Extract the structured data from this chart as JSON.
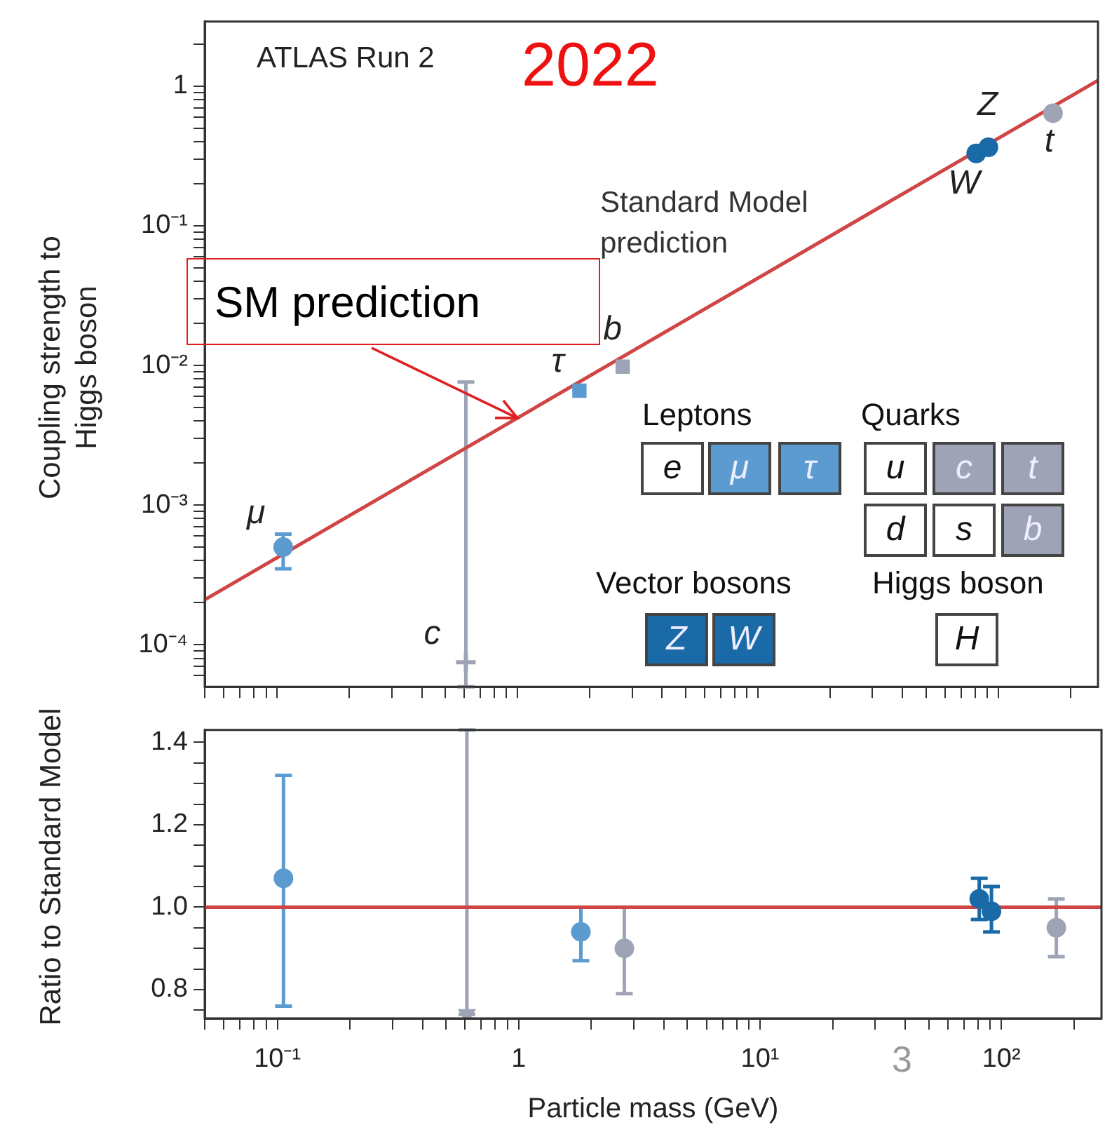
{
  "chart_data": [
    {
      "type": "scatter",
      "log": "xy",
      "ylabel": "Coupling strength to Higgs boson",
      "tick_labels": "y",
      "xlim": [
        0.05,
        260
      ],
      "xticks": [
        {
          "value": 0.05,
          "label": null
        },
        {
          "value": 0.06,
          "label": null
        },
        {
          "value": 0.07,
          "label": null
        },
        {
          "value": 0.08,
          "label": null
        },
        {
          "value": 0.09,
          "label": null
        },
        {
          "value": 0.1,
          "label": null
        },
        {
          "value": 0.2,
          "label": null
        },
        {
          "value": 0.3,
          "label": null
        },
        {
          "value": 0.4,
          "label": null
        },
        {
          "value": 0.5,
          "label": null
        },
        {
          "value": 0.6,
          "label": null
        },
        {
          "value": 0.7,
          "label": null
        },
        {
          "value": 0.8,
          "label": null
        },
        {
          "value": 0.9,
          "label": null
        },
        {
          "value": 1,
          "label": null
        },
        {
          "value": 2,
          "label": null
        },
        {
          "value": 3,
          "label": null
        },
        {
          "value": 4,
          "label": null
        },
        {
          "value": 5,
          "label": null
        },
        {
          "value": 6,
          "label": null
        },
        {
          "value": 7,
          "label": null
        },
        {
          "value": 8,
          "label": null
        },
        {
          "value": 9,
          "label": null
        },
        {
          "value": 10,
          "label": null
        },
        {
          "value": 20,
          "label": null
        },
        {
          "value": 30,
          "label": null
        },
        {
          "value": 40,
          "label": null
        },
        {
          "value": 50,
          "label": null
        },
        {
          "value": 60,
          "label": null
        },
        {
          "value": 70,
          "label": null
        },
        {
          "value": 80,
          "label": null
        },
        {
          "value": 90,
          "label": null
        },
        {
          "value": 100,
          "label": null
        },
        {
          "value": 200,
          "label": null
        }
      ],
      "ylim": [
        5e-05,
        2.9
      ],
      "yticks": [
        {
          "value": 6e-05,
          "label": null
        },
        {
          "value": 7e-05,
          "label": null
        },
        {
          "value": 8e-05,
          "label": null
        },
        {
          "value": 9e-05,
          "label": null
        },
        {
          "value": 0.0001,
          "label": "10⁻⁴"
        },
        {
          "value": 0.0002,
          "label": null
        },
        {
          "value": 0.0003,
          "label": null
        },
        {
          "value": 0.0004,
          "label": null
        },
        {
          "value": 0.0005,
          "label": null
        },
        {
          "value": 0.0006,
          "label": null
        },
        {
          "value": 0.0007,
          "label": null
        },
        {
          "value": 0.0008,
          "label": null
        },
        {
          "value": 0.0009,
          "label": null
        },
        {
          "value": 0.001,
          "label": "10⁻³"
        },
        {
          "value": 0.002,
          "label": null
        },
        {
          "value": 0.003,
          "label": null
        },
        {
          "value": 0.004,
          "label": null
        },
        {
          "value": 0.005,
          "label": null
        },
        {
          "value": 0.006,
          "label": null
        },
        {
          "value": 0.007,
          "label": null
        },
        {
          "value": 0.008,
          "label": null
        },
        {
          "value": 0.009,
          "label": null
        },
        {
          "value": 0.01,
          "label": "10⁻²"
        },
        {
          "value": 0.02,
          "label": null
        },
        {
          "value": 0.03,
          "label": null
        },
        {
          "value": 0.04,
          "label": null
        },
        {
          "value": 0.05,
          "label": null
        },
        {
          "value": 0.06,
          "label": null
        },
        {
          "value": 0.07,
          "label": null
        },
        {
          "value": 0.08,
          "label": null
        },
        {
          "value": 0.09,
          "label": null
        },
        {
          "value": 0.1,
          "label": "10⁻¹"
        },
        {
          "value": 0.2,
          "label": null
        },
        {
          "value": 0.3,
          "label": null
        },
        {
          "value": 0.4,
          "label": null
        },
        {
          "value": 0.5,
          "label": null
        },
        {
          "value": 0.6,
          "label": null
        },
        {
          "value": 0.7,
          "label": null
        },
        {
          "value": 0.8,
          "label": null
        },
        {
          "value": 0.9,
          "label": null
        },
        {
          "value": 1,
          "label": "1"
        },
        {
          "value": 2,
          "label": null
        }
      ],
      "series": [
        {
          "name": "Standard Model prediction",
          "type": "line",
          "color": "#d04545",
          "x": [
            0.05,
            260
          ],
          "values": [
            0.00021,
            1.1
          ]
        },
        {
          "name": "μ",
          "color": "#5b9bd0",
          "marker": "circle",
          "x": [
            0.106
          ],
          "values": [
            0.0005
          ],
          "errors": [
            [
              0.00035,
              0.00062
            ]
          ]
        },
        {
          "name": "c",
          "color": "#9ea4b5",
          "marker": "cross",
          "x": [
            0.61
          ],
          "values": [
            7.5e-05
          ],
          "errors": [
            [
              5e-05,
              0.0076
            ]
          ]
        },
        {
          "name": "τ",
          "color": "#5b9bd0",
          "marker": "square",
          "x": [
            1.81
          ],
          "values": [
            0.0066
          ]
        },
        {
          "name": "b",
          "color": "#9ea4b5",
          "marker": "square",
          "x": [
            2.74
          ],
          "values": [
            0.0098
          ]
        },
        {
          "name": "Z",
          "color": "#1a6aa8",
          "marker": "circle",
          "x": [
            91
          ],
          "values": [
            0.365
          ]
        },
        {
          "name": "W",
          "color": "#1a6aa8",
          "marker": "circle",
          "x": [
            81
          ],
          "values": [
            0.33
          ]
        },
        {
          "name": "t",
          "color": "#9ea4b5",
          "marker": "circle",
          "x": [
            169
          ],
          "values": [
            0.64
          ]
        }
      ],
      "annotations": [
        "ATLAS Run 2",
        "2022",
        {
          "text": "SM prediction",
          "x": 1.0,
          "y": 0.0042
        },
        "Leptons",
        "e",
        "μ",
        "τ",
        "Quarks",
        "u",
        "c",
        "t",
        "d",
        "s",
        "b",
        "Vector bosons",
        "Z",
        "W",
        "Higgs boson",
        "H"
      ]
    },
    {
      "type": "scatter",
      "log": "x",
      "xlabel": "Particle mass (GeV)",
      "ylabel": "Ratio to Standard Model",
      "xlim": [
        0.05,
        260
      ],
      "xticks": [
        {
          "value": 0.05,
          "label": null
        },
        {
          "value": 0.06,
          "label": null
        },
        {
          "value": 0.07,
          "label": null
        },
        {
          "value": 0.08,
          "label": null
        },
        {
          "value": 0.09,
          "label": null
        },
        {
          "value": 0.1,
          "label": "10⁻¹"
        },
        {
          "value": 0.2,
          "label": null
        },
        {
          "value": 0.3,
          "label": null
        },
        {
          "value": 0.4,
          "label": null
        },
        {
          "value": 0.5,
          "label": null
        },
        {
          "value": 0.6,
          "label": null
        },
        {
          "value": 0.7,
          "label": null
        },
        {
          "value": 0.8,
          "label": null
        },
        {
          "value": 0.9,
          "label": null
        },
        {
          "value": 1,
          "label": "1"
        },
        {
          "value": 2,
          "label": null
        },
        {
          "value": 3,
          "label": null
        },
        {
          "value": 4,
          "label": null
        },
        {
          "value": 5,
          "label": null
        },
        {
          "value": 6,
          "label": null
        },
        {
          "value": 7,
          "label": null
        },
        {
          "value": 8,
          "label": null
        },
        {
          "value": 9,
          "label": null
        },
        {
          "value": 10,
          "label": "10¹"
        },
        {
          "value": 20,
          "label": null
        },
        {
          "value": 30,
          "label": null
        },
        {
          "value": 40,
          "label": null
        },
        {
          "value": 50,
          "label": null
        },
        {
          "value": 60,
          "label": null
        },
        {
          "value": 70,
          "label": null
        },
        {
          "value": 80,
          "label": null
        },
        {
          "value": 90,
          "label": null
        },
        {
          "value": 100,
          "label": "10²"
        },
        {
          "value": 200,
          "label": null
        }
      ],
      "ylim": [
        0.73,
        1.43
      ],
      "yticks": [
        {
          "value": 0.75,
          "label": null
        },
        0.8,
        {
          "value": 0.85,
          "label": null
        },
        {
          "value": 0.9,
          "label": null
        },
        {
          "value": 0.95,
          "label": null
        },
        {
          "value": 1,
          "label": "1.0"
        },
        {
          "value": 1.05,
          "label": null
        },
        {
          "value": 1.1,
          "label": null
        },
        {
          "value": 1.15,
          "label": null
        },
        1.2,
        {
          "value": 1.25,
          "label": null
        },
        {
          "value": 1.3,
          "label": null
        },
        {
          "value": 1.35,
          "label": null
        },
        1.4
      ],
      "ref_lines": [
        {
          "axis": "y",
          "value": 1,
          "color": "#d04545"
        }
      ],
      "series": [
        {
          "color": "#5b9bd0",
          "marker": "circle",
          "x": [
            0.106
          ],
          "values": [
            1.07
          ],
          "errors": [
            [
              0.76,
              1.32
            ]
          ]
        },
        {
          "color": "#9ea4b5",
          "marker": "triangle",
          "x": [
            0.61
          ],
          "values": [
            0.74
          ],
          "errors": [
            [
              0.74,
              1.43
            ]
          ]
        },
        {
          "color": "#5b9bd0",
          "marker": "circle",
          "x": [
            1.81
          ],
          "values": [
            0.94
          ],
          "errors": [
            [
              0.87,
              1.0
            ]
          ]
        },
        {
          "color": "#9ea4b5",
          "marker": "circle",
          "x": [
            2.74
          ],
          "values": [
            0.9
          ],
          "errors": [
            [
              0.79,
              1.0
            ]
          ]
        },
        {
          "color": "#1a6aa8",
          "marker": "circle",
          "x": [
            81
          ],
          "values": [
            1.02
          ],
          "errors": [
            [
              0.97,
              1.07
            ]
          ]
        },
        {
          "color": "#1a6aa8",
          "marker": "circle",
          "x": [
            91
          ],
          "values": [
            0.99
          ],
          "errors": [
            [
              0.94,
              1.05
            ]
          ]
        },
        {
          "color": "#9ea4b5",
          "marker": "circle",
          "x": [
            169
          ],
          "values": [
            0.95
          ],
          "errors": [
            [
              0.88,
              1.02
            ]
          ]
        }
      ],
      "annotations": [
        "3"
      ]
    }
  ]
}
